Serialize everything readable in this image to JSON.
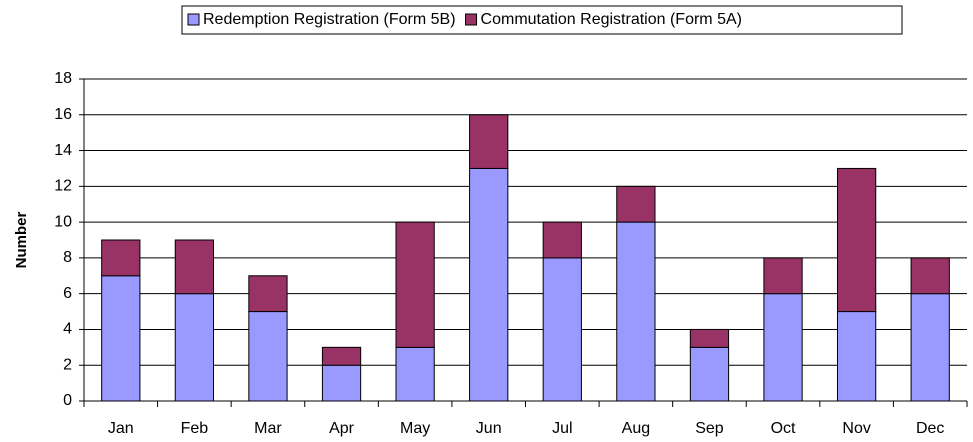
{
  "chart_data": {
    "type": "stacked_bar",
    "y_label": "Number",
    "categories": [
      "Jan",
      "Feb",
      "Mar",
      "Apr",
      "May",
      "Jun",
      "Jul",
      "Aug",
      "Sep",
      "Oct",
      "Nov",
      "Dec"
    ],
    "series": [
      {
        "name": "Redemption Registration (Form 5B)",
        "color": "#9999ff",
        "values": [
          7,
          6,
          5,
          2,
          3,
          13,
          8,
          10,
          3,
          6,
          5,
          6
        ]
      },
      {
        "name": "Commutation Registration (Form 5A)",
        "color": "#993366",
        "values": [
          2,
          3,
          2,
          1,
          7,
          3,
          2,
          2,
          1,
          2,
          8,
          2
        ]
      }
    ],
    "ylim": [
      0,
      18
    ],
    "yticks": [
      0,
      2,
      4,
      6,
      8,
      10,
      12,
      14,
      16,
      18
    ],
    "grid": true,
    "legend": "top"
  }
}
